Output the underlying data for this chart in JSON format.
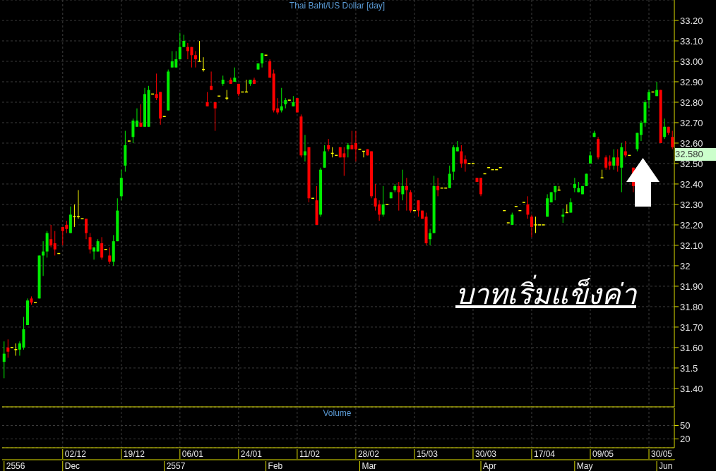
{
  "chart_data": [
    {
      "type": "candlestick",
      "title": "Thai Baht/US Dollar [day]",
      "categories": [
        null,
        null,
        null,
        null,
        null,
        null,
        null,
        null,
        null,
        null,
        null,
        null,
        null,
        null,
        null,
        null,
        null,
        null,
        null,
        null,
        null,
        null,
        null,
        null,
        null,
        null,
        null,
        null,
        null,
        null,
        null,
        null,
        null,
        null,
        null,
        null,
        null,
        null,
        null,
        null,
        null,
        null,
        null,
        null,
        null,
        null,
        null,
        null,
        null,
        null,
        null,
        null,
        null,
        null,
        null,
        null,
        null,
        null,
        null,
        null,
        null,
        null,
        null,
        null,
        null,
        null,
        null,
        null,
        null,
        null,
        null,
        null,
        null,
        null,
        null,
        null,
        null,
        null,
        null,
        null,
        null,
        null,
        null,
        null,
        null,
        null,
        null,
        null,
        null,
        null,
        null,
        null,
        null,
        null,
        null,
        null,
        null,
        null,
        null,
        null,
        null,
        null,
        null,
        null,
        null,
        null,
        null,
        null,
        null,
        null,
        null,
        null,
        null,
        null,
        null,
        null,
        null,
        null,
        null,
        null,
        null,
        null,
        null,
        null,
        null,
        null,
        null,
        null,
        null,
        null,
        null,
        null,
        null,
        null,
        null,
        null,
        null,
        null,
        null,
        null,
        null,
        null,
        null,
        null,
        null,
        null,
        null,
        null,
        null,
        null,
        null,
        null,
        null,
        null,
        null,
        null,
        null,
        null,
        null,
        null,
        null,
        null,
        null,
        null,
        null,
        null,
        null,
        null,
        null,
        null,
        null,
        null
      ],
      "ohlc": [
        [
          31.53,
          31.63,
          31.45,
          31.57
        ],
        [
          31.6,
          31.64,
          31.55,
          31.58
        ],
        [
          31.6,
          31.6,
          31.6,
          31.6
        ],
        [
          31.59,
          31.62,
          31.56,
          31.59
        ],
        [
          31.59,
          31.63,
          31.56,
          31.62
        ],
        [
          31.6,
          31.75,
          31.59,
          31.69
        ],
        [
          31.71,
          31.84,
          31.71,
          31.83
        ],
        [
          31.84,
          31.85,
          31.81,
          31.82
        ],
        [
          31.82,
          31.82,
          31.82,
          31.82
        ],
        [
          31.84,
          32.05,
          31.84,
          32.05
        ],
        [
          32.05,
          32.12,
          31.95,
          32.07
        ],
        [
          32.07,
          32.17,
          32.04,
          32.16
        ],
        [
          32.13,
          32.2,
          32.09,
          32.1
        ],
        [
          32.11,
          32.17,
          32.05,
          32.08
        ],
        [
          32.06,
          32.06,
          32.06,
          32.06
        ],
        [
          32.19,
          32.19,
          32.1,
          32.17
        ],
        [
          32.2,
          32.22,
          32.16,
          32.18
        ],
        [
          32.16,
          32.29,
          32.16,
          32.25
        ],
        [
          32.24,
          32.3,
          32.19,
          32.24
        ],
        [
          32.24,
          32.37,
          32.23,
          32.24
        ],
        [
          32.23,
          32.23,
          32.23,
          32.23
        ],
        [
          32.23,
          32.23,
          32.13,
          32.16
        ],
        [
          32.14,
          32.16,
          32.06,
          32.08
        ],
        [
          32.07,
          32.09,
          32.03,
          32.09
        ],
        [
          32.07,
          32.13,
          32.07,
          32.12
        ],
        [
          32.11,
          32.14,
          32.03,
          32.04
        ],
        [
          32.08,
          32.08,
          32.08,
          32.08
        ],
        [
          32.05,
          32.09,
          32.01,
          32.02
        ],
        [
          32.02,
          32.15,
          32.0,
          32.12
        ],
        [
          32.12,
          32.33,
          32.12,
          32.27
        ],
        [
          32.34,
          32.47,
          32.32,
          32.43
        ],
        [
          32.49,
          32.66,
          32.46,
          32.59
        ],
        [
          32.61,
          32.61,
          32.61,
          32.61
        ],
        [
          32.63,
          32.72,
          32.6,
          32.71
        ],
        [
          32.68,
          32.77,
          32.68,
          32.71
        ],
        [
          32.7,
          32.79,
          32.68,
          32.68
        ],
        [
          32.68,
          32.87,
          32.68,
          32.84
        ],
        [
          32.68,
          32.88,
          32.68,
          32.86
        ],
        [
          32.84,
          32.84,
          32.84,
          32.84
        ],
        [
          32.84,
          32.94,
          32.81,
          32.82
        ],
        [
          32.85,
          32.85,
          32.69,
          32.72
        ],
        [
          32.73,
          32.73,
          32.73,
          32.73
        ],
        [
          32.76,
          32.96,
          32.76,
          32.95
        ],
        [
          32.97,
          33.05,
          32.97,
          33.0
        ],
        [
          32.97,
          33.05,
          32.97,
          33.01
        ],
        [
          33.01,
          33.14,
          33.01,
          33.07
        ],
        [
          33.07,
          33.13,
          33.07,
          33.1
        ],
        [
          33.07,
          33.09,
          33.01,
          33.05
        ],
        [
          33.07,
          33.07,
          32.97,
          33.03
        ],
        [
          33.03,
          33.05,
          32.97,
          33.01
        ],
        [
          33.0,
          33.1,
          33.0,
          33.0
        ],
        [
          32.96,
          33.02,
          32.95,
          32.96
        ],
        [
          32.8,
          32.85,
          32.78,
          32.78
        ],
        [
          32.88,
          32.95,
          32.86,
          32.86
        ],
        [
          32.8,
          32.8,
          32.66,
          32.77
        ],
        [
          32.83,
          32.83,
          32.83,
          32.83
        ],
        [
          32.89,
          32.93,
          32.88,
          32.91
        ],
        [
          32.82,
          32.86,
          32.81,
          32.82
        ],
        [
          32.91,
          32.92,
          32.89,
          32.89
        ],
        [
          32.9,
          32.97,
          32.9,
          32.92
        ],
        [
          32.89,
          32.89,
          32.83,
          32.84
        ],
        [
          32.85,
          32.85,
          32.85,
          32.85
        ],
        [
          32.85,
          32.91,
          32.85,
          32.85
        ],
        [
          32.89,
          32.91,
          32.88,
          32.91
        ],
        [
          32.91,
          32.92,
          32.89,
          32.89
        ],
        [
          32.96,
          32.99,
          32.96,
          32.99
        ],
        [
          32.99,
          33.04,
          32.97,
          33.04
        ],
        [
          33.03,
          33.03,
          33.03,
          33.03
        ],
        [
          33.0,
          33.01,
          32.92,
          32.92
        ],
        [
          32.94,
          32.96,
          32.75,
          32.76
        ],
        [
          32.77,
          32.82,
          32.74,
          32.75
        ],
        [
          32.76,
          32.87,
          32.75,
          32.78
        ],
        [
          32.79,
          32.82,
          32.77,
          32.81
        ],
        [
          32.81,
          32.81,
          32.81,
          32.81
        ],
        [
          32.78,
          32.83,
          32.78,
          32.8
        ],
        [
          32.82,
          32.82,
          32.75,
          32.75
        ],
        [
          32.73,
          32.74,
          32.53,
          32.54
        ],
        [
          32.54,
          32.64,
          32.51,
          32.56
        ],
        [
          32.58,
          32.58,
          32.31,
          32.33
        ],
        [
          32.33,
          32.33,
          32.33,
          32.33
        ],
        [
          32.32,
          32.39,
          32.2,
          32.2
        ],
        [
          32.25,
          32.48,
          32.24,
          32.47
        ],
        [
          32.48,
          32.59,
          32.48,
          32.56
        ],
        [
          32.59,
          32.62,
          32.56,
          32.57
        ],
        [
          32.55,
          32.58,
          32.53,
          32.55
        ],
        [
          32.54,
          32.54,
          32.54,
          32.54
        ],
        [
          32.58,
          32.58,
          32.53,
          32.53
        ],
        [
          32.55,
          32.58,
          32.44,
          32.53
        ],
        [
          32.57,
          32.6,
          32.53,
          32.59
        ],
        [
          32.59,
          32.66,
          32.57,
          32.57
        ],
        [
          32.6,
          32.66,
          32.51,
          32.57
        ],
        [
          32.57,
          32.57,
          32.57,
          32.57
        ],
        [
          32.56,
          32.56,
          32.53,
          32.56
        ],
        [
          32.57,
          32.57,
          32.54,
          32.54
        ],
        [
          32.56,
          32.56,
          32.33,
          32.34
        ],
        [
          32.33,
          32.4,
          32.27,
          32.29
        ],
        [
          32.3,
          32.32,
          32.22,
          32.25
        ],
        [
          32.25,
          32.39,
          32.24,
          32.3
        ],
        [
          32.3,
          32.3,
          32.3,
          32.3
        ],
        [
          32.33,
          32.36,
          32.33,
          32.36
        ],
        [
          32.37,
          32.4,
          32.36,
          32.39
        ],
        [
          32.39,
          32.41,
          32.27,
          32.36
        ],
        [
          32.35,
          32.47,
          32.32,
          32.39
        ],
        [
          32.39,
          32.43,
          32.27,
          32.37
        ],
        [
          32.36,
          32.37,
          32.26,
          32.27
        ],
        [
          32.27,
          32.27,
          32.27,
          32.27
        ],
        [
          32.32,
          32.32,
          32.24,
          32.27
        ],
        [
          32.27,
          32.27,
          32.23,
          32.23
        ],
        [
          32.24,
          32.26,
          32.1,
          32.11
        ],
        [
          32.13,
          32.18,
          32.1,
          32.16
        ],
        [
          32.16,
          32.44,
          32.16,
          32.39
        ],
        [
          32.39,
          32.43,
          32.34,
          32.37
        ],
        [
          32.38,
          32.38,
          32.38,
          32.38
        ],
        [
          32.38,
          32.38,
          32.38,
          32.38
        ],
        [
          32.38,
          32.49,
          32.38,
          32.45
        ],
        [
          32.46,
          32.59,
          32.42,
          32.58
        ],
        [
          32.56,
          32.61,
          32.56,
          32.58
        ],
        [
          32.56,
          32.59,
          32.48,
          32.5
        ],
        [
          32.52,
          32.54,
          32.46,
          32.5
        ],
        [
          32.5,
          32.5,
          32.5,
          32.5
        ],
        [
          32.5,
          32.5,
          32.5,
          32.5
        ],
        [
          32.43,
          32.43,
          32.41,
          32.41
        ],
        [
          32.43,
          32.43,
          32.34,
          32.35
        ],
        [
          32.45,
          32.45,
          32.45,
          32.45
        ],
        [
          32.48,
          32.48,
          32.48,
          32.48
        ],
        [
          32.47,
          32.47,
          32.47,
          32.47
        ],
        [
          32.47,
          32.47,
          32.47,
          32.47
        ],
        [
          32.48,
          32.48,
          32.48,
          32.48
        ],
        [
          32.27,
          32.27,
          32.27,
          32.27
        ],
        [
          32.21,
          32.21,
          32.21,
          32.21
        ],
        [
          32.2,
          32.26,
          32.2,
          32.25
        ],
        [
          32.29,
          32.29,
          32.29,
          32.29
        ],
        [
          32.27,
          32.27,
          32.27,
          32.27
        ],
        [
          32.31,
          32.31,
          32.31,
          32.31
        ],
        [
          32.3,
          32.34,
          32.23,
          32.25
        ],
        [
          32.24,
          32.25,
          32.14,
          32.19
        ],
        [
          32.2,
          32.24,
          32.16,
          32.2
        ],
        [
          32.2,
          32.2,
          32.2,
          32.2
        ],
        [
          32.2,
          32.2,
          32.2,
          32.2
        ],
        [
          32.24,
          32.35,
          32.24,
          32.33
        ],
        [
          32.31,
          32.36,
          32.31,
          32.36
        ],
        [
          32.36,
          32.39,
          32.32,
          32.39
        ],
        [
          32.37,
          32.39,
          32.37,
          32.37
        ],
        [
          32.24,
          32.28,
          32.21,
          32.25
        ],
        [
          32.26,
          32.3,
          32.26,
          32.26
        ],
        [
          32.26,
          32.33,
          32.26,
          32.31
        ],
        [
          32.38,
          32.43,
          32.36,
          32.4
        ],
        [
          32.36,
          32.41,
          32.36,
          32.38
        ],
        [
          32.35,
          32.39,
          32.35,
          32.39
        ],
        [
          32.39,
          32.45,
          32.39,
          32.45
        ],
        [
          32.5,
          32.56,
          32.5,
          32.54
        ],
        [
          32.63,
          32.66,
          32.63,
          32.65
        ],
        [
          32.62,
          32.63,
          32.52,
          32.53
        ],
        [
          32.43,
          32.47,
          32.43,
          32.43
        ],
        [
          32.53,
          32.54,
          32.47,
          32.48
        ],
        [
          32.51,
          32.54,
          32.47,
          32.49
        ],
        [
          32.49,
          32.57,
          32.47,
          32.53
        ],
        [
          32.53,
          32.57,
          32.46,
          32.49
        ],
        [
          32.48,
          32.6,
          32.36,
          32.58
        ],
        [
          32.56,
          32.61,
          32.53,
          32.54
        ],
        [
          32.54,
          32.54,
          32.54,
          32.54
        ],
        [
          32.48,
          32.48,
          32.36,
          32.39
        ],
        [
          32.57,
          32.65,
          32.56,
          32.65
        ],
        [
          32.64,
          32.71,
          32.61,
          32.7
        ],
        [
          32.7,
          32.81,
          32.68,
          32.8
        ],
        [
          32.81,
          32.86,
          32.77,
          32.85
        ],
        [
          32.85,
          32.85,
          32.85,
          32.85
        ],
        [
          32.83,
          32.9,
          32.83,
          32.86
        ],
        [
          32.86,
          32.86,
          32.6,
          32.6
        ],
        [
          32.63,
          32.72,
          32.62,
          32.68
        ],
        [
          32.68,
          32.68,
          32.64,
          32.65
        ],
        [
          32.63,
          32.66,
          32.57,
          32.58
        ]
      ],
      "colors": [
        "#00ee00",
        "#ff0000",
        "#ffff00",
        "#ffff00",
        "#00ee00",
        "#00ee00",
        "#00ee00",
        "#ff0000",
        "#ffff00",
        "#00ee00",
        "#00ee00",
        "#00ee00",
        "#ff0000",
        "#ff0000",
        "#ffff00",
        "#ff0000",
        "#ff0000",
        "#00ee00",
        "#ffff00",
        "#ffff00",
        "#ffff00",
        "#ff0000",
        "#ff0000",
        "#00ee00",
        "#00ee00",
        "#ff0000",
        "#ffff00",
        "#ff0000",
        "#00ee00",
        "#00ee00",
        "#00ee00",
        "#00ee00",
        "#ffff00",
        "#00ee00",
        "#00ee00",
        "#ff0000",
        "#00ee00",
        "#00ee00",
        "#ffff00",
        "#ff0000",
        "#ff0000",
        "#ffff00",
        "#00ee00",
        "#00ee00",
        "#00ee00",
        "#00ee00",
        "#00ee00",
        "#ff0000",
        "#ff0000",
        "#ff0000",
        "#ffff00",
        "#ffff00",
        "#ff0000",
        "#ff0000",
        "#ff0000",
        "#ffff00",
        "#00ee00",
        "#ffff00",
        "#ff0000",
        "#00ee00",
        "#ff0000",
        "#ffff00",
        "#ffff00",
        "#00ee00",
        "#ff0000",
        "#00ee00",
        "#00ee00",
        "#ffff00",
        "#ff0000",
        "#ff0000",
        "#ff0000",
        "#00ee00",
        "#00ee00",
        "#ffff00",
        "#00ee00",
        "#ff0000",
        "#ff0000",
        "#00ee00",
        "#ff0000",
        "#ffff00",
        "#ff0000",
        "#00ee00",
        "#00ee00",
        "#ff0000",
        "#ffff00",
        "#ffff00",
        "#ff0000",
        "#ff0000",
        "#00ee00",
        "#ff0000",
        "#ff0000",
        "#ffff00",
        "#ffff00",
        "#ff0000",
        "#ff0000",
        "#ff0000",
        "#ff0000",
        "#00ee00",
        "#ffff00",
        "#00ee00",
        "#00ee00",
        "#ff0000",
        "#00ee00",
        "#ff0000",
        "#ff0000",
        "#ffff00",
        "#ff0000",
        "#ff0000",
        "#ff0000",
        "#00ee00",
        "#00ee00",
        "#ff0000",
        "#ffff00",
        "#ffff00",
        "#00ee00",
        "#00ee00",
        "#00ee00",
        "#ff0000",
        "#ff0000",
        "#ffff00",
        "#ffff00",
        "#ff0000",
        "#ff0000",
        "#ffff00",
        "#ffff00",
        "#ffff00",
        "#ffff00",
        "#ffff00",
        "#ffff00",
        "#ffff00",
        "#00ee00",
        "#ffff00",
        "#ffff00",
        "#ffff00",
        "#ff0000",
        "#ff0000",
        "#ffff00",
        "#ffff00",
        "#ffff00",
        "#00ee00",
        "#00ee00",
        "#00ee00",
        "#ffff00",
        "#00ee00",
        "#ffff00",
        "#00ee00",
        "#00ee00",
        "#00ee00",
        "#00ee00",
        "#00ee00",
        "#00ee00",
        "#00ee00",
        "#ff0000",
        "#ffff00",
        "#ff0000",
        "#ff0000",
        "#00ee00",
        "#ff0000",
        "#00ee00",
        "#ff0000",
        "#ffff00",
        "#ff0000",
        "#00ee00",
        "#00ee00",
        "#00ee00",
        "#00ee00",
        "#ffff00",
        "#00ee00",
        "#ff0000",
        "#00ee00",
        "#ff0000",
        "#ff0000"
      ],
      "ylim": [
        31.31,
        33.3
      ],
      "yticks": [
        {
          "value": 31.4,
          "label": "31.40"
        },
        31.5,
        {
          "value": 31.6,
          "label": "31.60"
        },
        {
          "value": 31.7,
          "label": "31.70"
        },
        {
          "value": 31.8,
          "label": "31.80"
        },
        {
          "value": 31.9,
          "label": "31.90"
        },
        32,
        {
          "value": 32.1,
          "label": "32.10"
        },
        {
          "value": 32.2,
          "label": "32.20"
        },
        {
          "value": 32.3,
          "label": "32.30"
        },
        {
          "value": 32.4,
          "label": "32.40"
        },
        {
          "value": 32.5,
          "label": "32.50"
        },
        {
          "value": 32.6,
          "label": "32.60"
        },
        {
          "value": 32.7,
          "label": "32.70"
        },
        {
          "value": 32.8,
          "label": "32.80"
        },
        {
          "value": 32.9,
          "label": "32.90"
        },
        {
          "value": 33.0,
          "label": "33.00"
        },
        {
          "value": 33.1,
          "label": "33.10"
        },
        {
          "value": 33.2,
          "label": "33.20"
        }
      ],
      "grid": true,
      "tick_labels": "y",
      "annotations": [
        "บาทเริ่มแข็งค่า",
        "32.580"
      ]
    },
    {
      "type": "bar",
      "title": "Volume",
      "categories": [
        null,
        null,
        null,
        null,
        null,
        null,
        null,
        null,
        null,
        null,
        null,
        null,
        null,
        null,
        null,
        "02/12",
        null,
        null,
        null,
        null,
        null,
        null,
        null,
        null,
        null,
        null,
        null,
        null,
        null,
        null,
        "19/12",
        null,
        null,
        null,
        null,
        null,
        null,
        null,
        null,
        null,
        null,
        null,
        null,
        null,
        null,
        "06/01",
        null,
        null,
        null,
        null,
        null,
        null,
        null,
        null,
        null,
        null,
        null,
        null,
        null,
        null,
        "24/01",
        null,
        null,
        null,
        null,
        null,
        null,
        null,
        null,
        null,
        null,
        null,
        null,
        null,
        null,
        "11/02",
        null,
        null,
        null,
        null,
        null,
        null,
        null,
        null,
        null,
        null,
        null,
        null,
        null,
        null,
        "28/02",
        null,
        null,
        null,
        null,
        null,
        null,
        null,
        null,
        null,
        null,
        null,
        null,
        null,
        null,
        "15/03",
        null,
        null,
        null,
        null,
        null,
        null,
        null,
        null,
        null,
        null,
        null,
        null,
        null,
        null,
        "30/03",
        null,
        null,
        null,
        null,
        null,
        null,
        null,
        null,
        null,
        null,
        null,
        null,
        null,
        null,
        "17/04",
        null,
        null,
        null,
        null,
        null,
        null,
        null,
        null,
        null,
        null,
        null,
        null,
        null,
        null,
        "09/05",
        null,
        null,
        null,
        null,
        null,
        null,
        null,
        null,
        null,
        null,
        null,
        null,
        null,
        null,
        "30/05",
        null,
        null,
        null,
        null,
        null,
        null
      ],
      "values": [
        null,
        null,
        null,
        null,
        null,
        null,
        null,
        null,
        null,
        null,
        null,
        null,
        null,
        null,
        null,
        null,
        null,
        null,
        null,
        null,
        null,
        null,
        null,
        null,
        null,
        null,
        null,
        null,
        null,
        null,
        null,
        null,
        null,
        null,
        null,
        null,
        null,
        null,
        null,
        null,
        null,
        null,
        null,
        null,
        null,
        null,
        null,
        null,
        null,
        null,
        null,
        null,
        null,
        null,
        null,
        null,
        null,
        null,
        null,
        null,
        null,
        null,
        null,
        null,
        null,
        null,
        null,
        null,
        null,
        null,
        null,
        null,
        null,
        null,
        null,
        null,
        null,
        null,
        null,
        null,
        null,
        null,
        null,
        null,
        null,
        null,
        null,
        null,
        null,
        null,
        null,
        null,
        null,
        null,
        null,
        null,
        null,
        null,
        null,
        null,
        null,
        null,
        null,
        null,
        null,
        null,
        null,
        null,
        null,
        null,
        null,
        null,
        null,
        null,
        null,
        null,
        null,
        null,
        null,
        null,
        null,
        null,
        null,
        null,
        null,
        null,
        null,
        null,
        null,
        null,
        null,
        null,
        null,
        null,
        null,
        null,
        null,
        null,
        null,
        null,
        null,
        null,
        null,
        null,
        null,
        null,
        null,
        null,
        null,
        null,
        null,
        null,
        null,
        null,
        null,
        null,
        null,
        null,
        null,
        null,
        null,
        null,
        null,
        null,
        null,
        null,
        null,
        null,
        null,
        null,
        null,
        null
      ],
      "log": true,
      "ylim": [
        11,
        170
      ],
      "yticks": [
        20,
        50
      ],
      "grid": true,
      "tick_labels": true
    },
    {
      "type": "other",
      "categories": [
        "2556",
        null,
        null,
        null,
        null,
        null,
        null,
        null,
        null,
        null,
        null,
        null,
        null,
        null,
        null,
        "Dec",
        null,
        null,
        null,
        null,
        null,
        null,
        null,
        null,
        null,
        null,
        null,
        null,
        null,
        null,
        null,
        null,
        null,
        null,
        null,
        null,
        null,
        null,
        null,
        null,
        null,
        "2557",
        null,
        null,
        null,
        null,
        null,
        null,
        null,
        null,
        null,
        null,
        null,
        null,
        null,
        null,
        null,
        null,
        null,
        null,
        null,
        null,
        null,
        null,
        null,
        null,
        null,
        "Feb",
        null,
        null,
        null,
        null,
        null,
        null,
        null,
        null,
        null,
        null,
        null,
        null,
        null,
        null,
        null,
        null,
        null,
        null,
        null,
        null,
        null,
        null,
        null,
        "Mar",
        null,
        null,
        null,
        null,
        null,
        null,
        null,
        null,
        null,
        null,
        null,
        null,
        null,
        null,
        null,
        null,
        null,
        null,
        null,
        null,
        null,
        null,
        null,
        null,
        null,
        null,
        null,
        null,
        null,
        null,
        "Apr",
        null,
        null,
        null,
        null,
        null,
        null,
        null,
        null,
        null,
        null,
        null,
        null,
        null,
        null,
        null,
        null,
        null,
        null,
        null,
        null,
        null,
        null,
        null,
        "May",
        null,
        null,
        null,
        null,
        null,
        null,
        null,
        null,
        null,
        null,
        null,
        null,
        null,
        null,
        null,
        null,
        null,
        null,
        null,
        null,
        "Jun",
        null,
        null,
        null,
        null
      ]
    }
  ]
}
